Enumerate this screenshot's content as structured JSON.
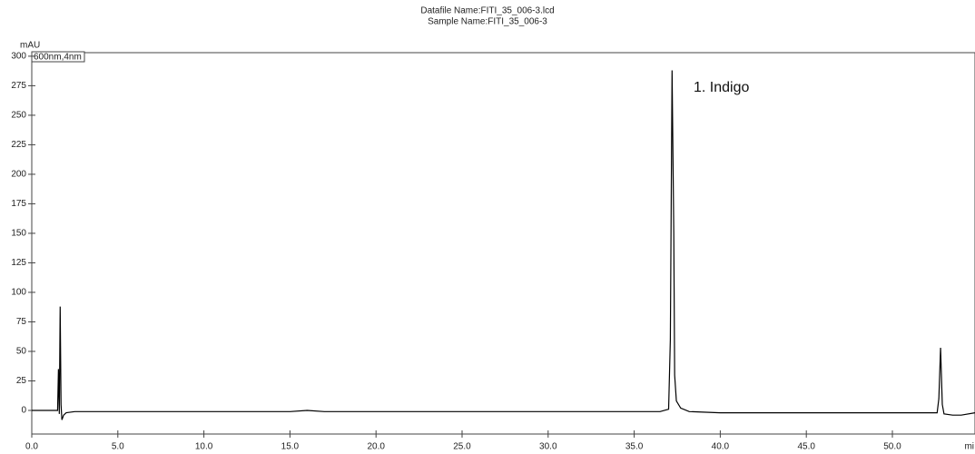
{
  "chart_data": {
    "type": "line",
    "title": "Datafile Name:FITI_35_006-3.lcd",
    "subtitle": "Sample Name:FITI_35_006-3",
    "y_label": "mAU",
    "x_label": "mi",
    "annotation": "1. Indigo",
    "series": [
      {
        "name": "600nm,4nm",
        "color": "#000000",
        "x": [
          0,
          1.5,
          1.55,
          1.6,
          1.65,
          1.7,
          1.75,
          1.85,
          2.0,
          2.5,
          5,
          10,
          15,
          16,
          17,
          20,
          25,
          30,
          34,
          36.5,
          37.0,
          37.1,
          37.2,
          37.3,
          37.35,
          37.45,
          37.7,
          38.2,
          40,
          45,
          50,
          52.6,
          52.7,
          52.8,
          52.9,
          53.0,
          53.5,
          54,
          54.8
        ],
        "values": [
          0,
          0,
          35,
          -3,
          88,
          5,
          -8,
          -4,
          -2,
          -1,
          -1,
          -1,
          -1,
          0,
          -1,
          -1,
          -1,
          -1,
          -1,
          -1,
          1,
          60,
          288,
          150,
          30,
          8,
          2,
          -1,
          -2,
          -2,
          -2,
          -2,
          10,
          53,
          5,
          -3,
          -4,
          -4,
          -2
        ]
      }
    ],
    "xlim": [
      0,
      54.8
    ],
    "ylim": [
      -20,
      303
    ],
    "xticks": [
      {
        "value": 0,
        "label": "0.0"
      },
      {
        "value": 5,
        "label": "5.0"
      },
      {
        "value": 10,
        "label": "10.0"
      },
      {
        "value": 15,
        "label": "15.0"
      },
      {
        "value": 20,
        "label": "20.0"
      },
      {
        "value": 25,
        "label": "25.0"
      },
      {
        "value": 30,
        "label": "30.0"
      },
      {
        "value": 35,
        "label": "35.0"
      },
      {
        "value": 40,
        "label": "40.0"
      },
      {
        "value": 45,
        "label": "45.0"
      },
      {
        "value": 50,
        "label": "50.0"
      }
    ],
    "yticks": [
      0,
      25,
      50,
      75,
      100,
      125,
      150,
      175,
      200,
      225,
      250,
      275,
      300
    ]
  }
}
